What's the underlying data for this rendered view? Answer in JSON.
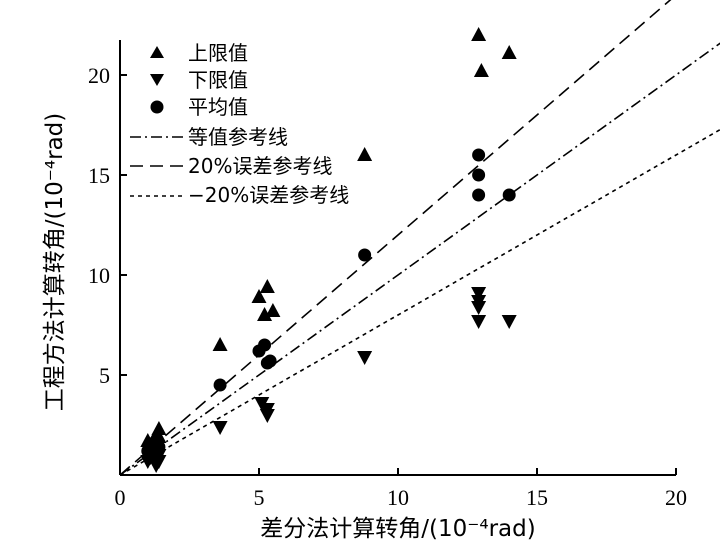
{
  "chart_data": {
    "type": "scatter",
    "title": "",
    "xlabel": "差分法计算转角/(10⁻⁴rad)",
    "ylabel": "工程方法计算转角/(10⁻⁴rad)",
    "xlim": [
      0,
      20
    ],
    "ylim": [
      0,
      22
    ],
    "xticks": [
      0,
      5,
      10,
      15,
      20
    ],
    "yticks": [
      5,
      10,
      15,
      20
    ],
    "xtick_labels": [
      "0",
      "5",
      "10",
      "15",
      "20"
    ],
    "ytick_labels": [
      "5",
      "10",
      "15",
      "20"
    ],
    "legend_position": "top-left",
    "series": [
      {
        "name": "上限值",
        "marker": "triangle-up",
        "points": [
          [
            1.0,
            1.7
          ],
          [
            1.1,
            1.5
          ],
          [
            1.3,
            2.0
          ],
          [
            1.4,
            2.3
          ],
          [
            1.4,
            1.9
          ],
          [
            1.3,
            1.3
          ],
          [
            3.6,
            6.5
          ],
          [
            5.0,
            8.9
          ],
          [
            5.3,
            9.4
          ],
          [
            5.2,
            8.0
          ],
          [
            5.5,
            8.2
          ],
          [
            8.8,
            16.0
          ],
          [
            12.9,
            22.0
          ],
          [
            13.0,
            20.2
          ],
          [
            14.0,
            21.1
          ]
        ]
      },
      {
        "name": "下限值",
        "marker": "triangle-down",
        "points": [
          [
            1.0,
            0.7
          ],
          [
            1.1,
            0.9
          ],
          [
            1.3,
            0.5
          ],
          [
            1.4,
            1.0
          ],
          [
            1.4,
            0.7
          ],
          [
            3.6,
            2.4
          ],
          [
            5.1,
            3.6
          ],
          [
            5.3,
            3.3
          ],
          [
            5.3,
            3.0
          ],
          [
            8.8,
            5.9
          ],
          [
            12.9,
            9.1
          ],
          [
            12.9,
            8.7
          ],
          [
            12.9,
            8.4
          ],
          [
            12.9,
            7.7
          ],
          [
            14.0,
            7.7
          ]
        ]
      },
      {
        "name": "平均值",
        "marker": "circle",
        "points": [
          [
            1.0,
            1.2
          ],
          [
            1.1,
            1.1
          ],
          [
            1.3,
            1.5
          ],
          [
            1.4,
            1.4
          ],
          [
            1.3,
            1.1
          ],
          [
            3.6,
            4.5
          ],
          [
            5.0,
            6.2
          ],
          [
            5.2,
            6.5
          ],
          [
            5.3,
            5.6
          ],
          [
            5.4,
            5.7
          ],
          [
            8.8,
            11.0
          ],
          [
            12.9,
            16.0
          ],
          [
            12.9,
            15.0
          ],
          [
            12.9,
            14.0
          ],
          [
            14.0,
            14.0
          ]
        ]
      }
    ],
    "reference_lines": [
      {
        "name": "等值参考线",
        "slope": 1.0,
        "style": "dash-dot"
      },
      {
        "name": "20%误差参考线",
        "slope": 1.2,
        "style": "long-dash"
      },
      {
        "name": "−20%误差参考线",
        "slope": 0.8,
        "style": "short-dash"
      }
    ]
  }
}
